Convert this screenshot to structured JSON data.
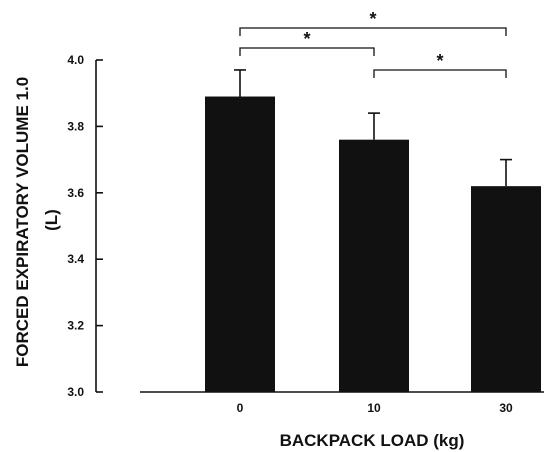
{
  "chart_data": {
    "type": "bar",
    "categories": [
      "0",
      "10",
      "30"
    ],
    "values": [
      3.89,
      3.76,
      3.62
    ],
    "error_upper": [
      3.97,
      3.84,
      3.7
    ],
    "xlabel": "BACKPACK LOAD (kg)",
    "ylabel": "FORCED EXPIRATORY VOLUME 1.0",
    "ylabel_unit": "(L)",
    "ylim": [
      3.0,
      4.0
    ],
    "yticks": [
      3.0,
      3.2,
      3.4,
      3.6,
      3.8,
      4.0
    ],
    "ytick_labels": [
      "3.0",
      "3.2",
      "3.4",
      "3.6",
      "3.8",
      "4.0"
    ],
    "bar_color": "#111111",
    "grid": false,
    "significance": [
      {
        "from": 0,
        "to": 2,
        "label": "*"
      },
      {
        "from": 0,
        "to": 1,
        "label": "*"
      },
      {
        "from": 1,
        "to": 2,
        "label": "*"
      }
    ]
  }
}
